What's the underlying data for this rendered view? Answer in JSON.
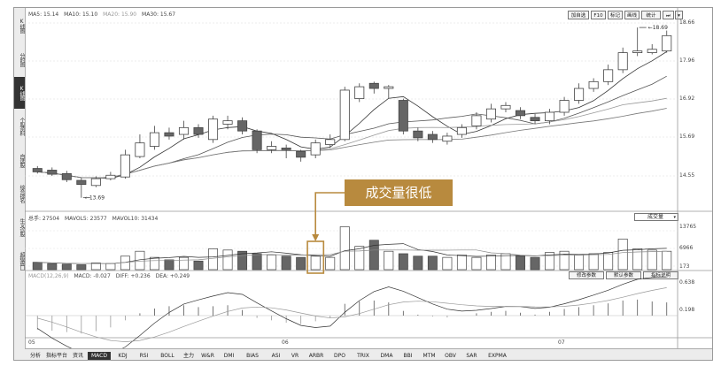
{
  "sidebar": {
    "items": [
      {
        "label": "K线图"
      },
      {
        "label": "分时图"
      },
      {
        "label": "K线图"
      },
      {
        "label": "个股资料"
      },
      {
        "label": "自选股"
      },
      {
        "label": "综合排名"
      },
      {
        "label": "牛叉诊股"
      },
      {
        "label": "超级盘口"
      }
    ]
  },
  "price_panel": {
    "ma": [
      {
        "label": "MA5: 15.14",
        "color": "#333333"
      },
      {
        "label": "MA10: 15.10",
        "color": "#333333"
      },
      {
        "label": "MA20: 15.90",
        "color": "#999999"
      },
      {
        "label": "MA30: 15.67",
        "color": "#555555"
      }
    ],
    "right_axis": [
      "18.66",
      "17.96",
      "16.92",
      "15.69",
      "14.55"
    ],
    "high_label": "18.69",
    "low_label": "13.69",
    "toolbar": [
      "加自选",
      "F10",
      "标记",
      "画线",
      "统计"
    ]
  },
  "volume_panel": {
    "info": [
      "总手: 27504",
      "MAVOL5: 23577",
      "MAVOL10: 31434"
    ],
    "right_axis": [
      "13765",
      "6966",
      "173"
    ],
    "selector_label": "成交量",
    "buttons": [
      "修改参数",
      "默认参数",
      "指标说明"
    ]
  },
  "macd_panel": {
    "info": [
      "MACD(12,26,9)",
      "MACD: -0.027",
      "DIFF: +0.236",
      "DEA: +0.249"
    ],
    "right_axis": [
      "0.638",
      "0.198"
    ]
  },
  "x_axis": [
    "05",
    "06",
    "07"
  ],
  "annotation": {
    "text": "成交量很低"
  },
  "tabs": [
    "分析",
    "指标平台",
    "资讯",
    "MACD",
    "KDJ",
    "RSI",
    "BOLL",
    "主力",
    "W&R",
    "DMI",
    "BIAS",
    "ASI",
    "VR",
    "ARBR",
    "DPO",
    "TRIX",
    "DMA",
    "BBI",
    "MTM",
    "OBV",
    "SAR",
    "EXPMA"
  ],
  "active_tab": "MACD",
  "chart_data": {
    "type": "candlestick",
    "ylim": [
      13.5,
      18.9
    ],
    "candles": [
      {
        "o": 14.55,
        "c": 14.45,
        "h": 14.62,
        "l": 14.4
      },
      {
        "o": 14.5,
        "c": 14.38,
        "h": 14.58,
        "l": 14.33
      },
      {
        "o": 14.4,
        "c": 14.22,
        "h": 14.48,
        "l": 14.15
      },
      {
        "o": 14.2,
        "c": 14.08,
        "h": 14.27,
        "l": 13.69
      },
      {
        "o": 14.05,
        "c": 14.25,
        "h": 14.32,
        "l": 14.0
      },
      {
        "o": 14.25,
        "c": 14.35,
        "h": 14.45,
        "l": 14.2
      },
      {
        "o": 14.3,
        "c": 14.95,
        "h": 15.1,
        "l": 14.25
      },
      {
        "o": 14.9,
        "c": 15.3,
        "h": 15.55,
        "l": 14.85
      },
      {
        "o": 15.2,
        "c": 15.6,
        "h": 15.8,
        "l": 15.1
      },
      {
        "o": 15.6,
        "c": 15.5,
        "h": 15.75,
        "l": 15.4
      },
      {
        "o": 15.55,
        "c": 15.75,
        "h": 15.95,
        "l": 15.4
      },
      {
        "o": 15.75,
        "c": 15.55,
        "h": 15.85,
        "l": 15.45
      },
      {
        "o": 15.4,
        "c": 16.0,
        "h": 16.1,
        "l": 15.3
      },
      {
        "o": 15.85,
        "c": 15.95,
        "h": 16.1,
        "l": 15.7
      },
      {
        "o": 15.95,
        "c": 15.65,
        "h": 16.05,
        "l": 15.55
      },
      {
        "o": 15.65,
        "c": 15.1,
        "h": 15.7,
        "l": 15.0
      },
      {
        "o": 15.1,
        "c": 15.2,
        "h": 15.35,
        "l": 15.0
      },
      {
        "o": 15.15,
        "c": 15.1,
        "h": 15.25,
        "l": 14.85
      },
      {
        "o": 15.05,
        "c": 14.88,
        "h": 15.1,
        "l": 14.75
      },
      {
        "o": 14.95,
        "c": 15.3,
        "h": 15.4,
        "l": 14.85
      },
      {
        "o": 15.25,
        "c": 15.4,
        "h": 15.55,
        "l": 15.15
      },
      {
        "o": 15.4,
        "c": 16.85,
        "h": 16.95,
        "l": 15.35
      },
      {
        "o": 16.6,
        "c": 16.95,
        "h": 17.05,
        "l": 16.5
      },
      {
        "o": 17.05,
        "c": 16.9,
        "h": 17.1,
        "l": 16.75
      },
      {
        "o": 16.9,
        "c": 16.95,
        "h": 17.0,
        "l": 16.6
      },
      {
        "o": 16.55,
        "c": 15.65,
        "h": 16.6,
        "l": 15.55
      },
      {
        "o": 15.65,
        "c": 15.45,
        "h": 15.75,
        "l": 15.35
      },
      {
        "o": 15.55,
        "c": 15.4,
        "h": 15.65,
        "l": 15.3
      },
      {
        "o": 15.35,
        "c": 15.5,
        "h": 15.6,
        "l": 15.25
      },
      {
        "o": 15.55,
        "c": 15.75,
        "h": 15.85,
        "l": 15.45
      },
      {
        "o": 15.8,
        "c": 16.1,
        "h": 16.2,
        "l": 15.7
      },
      {
        "o": 16.0,
        "c": 16.3,
        "h": 16.45,
        "l": 15.9
      },
      {
        "o": 16.3,
        "c": 16.4,
        "h": 16.5,
        "l": 16.2
      },
      {
        "o": 16.25,
        "c": 16.1,
        "h": 16.35,
        "l": 16.0
      },
      {
        "o": 16.05,
        "c": 15.95,
        "h": 16.15,
        "l": 15.85
      },
      {
        "o": 15.95,
        "c": 16.2,
        "h": 16.3,
        "l": 15.85
      },
      {
        "o": 16.2,
        "c": 16.55,
        "h": 16.65,
        "l": 16.1
      },
      {
        "o": 16.55,
        "c": 16.9,
        "h": 17.05,
        "l": 16.45
      },
      {
        "o": 16.9,
        "c": 17.1,
        "h": 17.2,
        "l": 16.8
      },
      {
        "o": 17.1,
        "c": 17.45,
        "h": 17.6,
        "l": 17.0
      },
      {
        "o": 17.45,
        "c": 17.95,
        "h": 18.1,
        "l": 17.35
      },
      {
        "o": 17.95,
        "c": 18.0,
        "h": 18.69,
        "l": 17.85
      },
      {
        "o": 17.95,
        "c": 18.05,
        "h": 18.2,
        "l": 17.9
      },
      {
        "o": 18.0,
        "c": 18.45,
        "h": 18.6,
        "l": 17.95
      }
    ],
    "volumes": [
      12,
      10,
      9,
      8,
      11,
      10,
      22,
      30,
      20,
      16,
      20,
      14,
      34,
      32,
      30,
      26,
      24,
      22,
      20,
      22,
      20,
      70,
      38,
      48,
      30,
      26,
      22,
      22,
      20,
      24,
      20,
      24,
      26,
      22,
      20,
      28,
      30,
      24,
      26,
      28,
      50,
      34,
      32,
      30
    ],
    "vol_ylim": [
      0,
      75
    ],
    "macd_hist": [
      -0.3,
      -0.32,
      -0.35,
      -0.38,
      -0.33,
      -0.25,
      -0.1,
      0.05,
      0.15,
      0.2,
      0.22,
      0.18,
      0.2,
      0.22,
      0.12,
      -0.05,
      -0.1,
      -0.15,
      -0.18,
      -0.12,
      -0.05,
      0.25,
      0.3,
      0.32,
      0.28,
      0.1,
      0.02,
      -0.02,
      -0.04,
      0.0,
      0.05,
      0.08,
      0.1,
      0.06,
      0.02,
      0.08,
      0.14,
      0.18,
      0.22,
      0.26,
      0.32,
      0.34,
      0.3,
      0.28
    ],
    "macd_ylim": [
      -0.45,
      0.75
    ]
  }
}
